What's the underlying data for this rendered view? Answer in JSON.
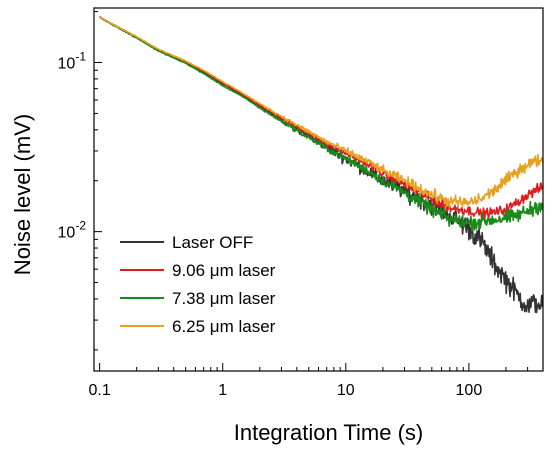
{
  "chart_data": {
    "type": "line",
    "xlabel": "Integration Time (s)",
    "ylabel": "Noise level (mV)",
    "x_scale": "log",
    "y_scale": "log",
    "xlim": [
      0.09,
      400
    ],
    "ylim": [
      0.0015,
      0.21
    ],
    "x_ticks": [
      {
        "value": 0.1,
        "label": "0.1"
      },
      {
        "value": 1,
        "label": "1"
      },
      {
        "value": 10,
        "label": "10"
      },
      {
        "value": 100,
        "label": "100"
      }
    ],
    "y_ticks": [
      {
        "value": 0.1,
        "base": "10",
        "exp": "-1"
      },
      {
        "value": 0.01,
        "base": "10",
        "exp": "-2"
      }
    ],
    "grid": false,
    "legend_position": "bottom-left",
    "series": [
      {
        "name": "Laser OFF",
        "color": "#333333",
        "points": [
          [
            0.1,
            0.185
          ],
          [
            0.2,
            0.14
          ],
          [
            0.3,
            0.118
          ],
          [
            0.5,
            0.1
          ],
          [
            0.7,
            0.088
          ],
          [
            1,
            0.075
          ],
          [
            1.5,
            0.063
          ],
          [
            2,
            0.055
          ],
          [
            3,
            0.046
          ],
          [
            5,
            0.037
          ],
          [
            7,
            0.032
          ],
          [
            10,
            0.027
          ],
          [
            15,
            0.023
          ],
          [
            20,
            0.02
          ],
          [
            30,
            0.0175
          ],
          [
            50,
            0.0145
          ],
          [
            70,
            0.0125
          ],
          [
            100,
            0.0105
          ],
          [
            130,
            0.0085
          ],
          [
            160,
            0.0065
          ],
          [
            200,
            0.0052
          ],
          [
            250,
            0.0042
          ],
          [
            300,
            0.0036
          ],
          [
            350,
            0.0038
          ],
          [
            400,
            0.0037
          ]
        ],
        "jitter": 0.09
      },
      {
        "name": "9.06 μm laser",
        "color": "#e41a1c",
        "points": [
          [
            0.1,
            0.185
          ],
          [
            0.2,
            0.141
          ],
          [
            0.3,
            0.119
          ],
          [
            0.5,
            0.101
          ],
          [
            0.7,
            0.089
          ],
          [
            1,
            0.076
          ],
          [
            1.5,
            0.064
          ],
          [
            2,
            0.056
          ],
          [
            3,
            0.047
          ],
          [
            5,
            0.038
          ],
          [
            7,
            0.033
          ],
          [
            10,
            0.029
          ],
          [
            15,
            0.025
          ],
          [
            20,
            0.022
          ],
          [
            30,
            0.019
          ],
          [
            50,
            0.0155
          ],
          [
            70,
            0.0138
          ],
          [
            100,
            0.0133
          ],
          [
            130,
            0.0128
          ],
          [
            160,
            0.013
          ],
          [
            200,
            0.0135
          ],
          [
            250,
            0.015
          ],
          [
            300,
            0.0165
          ],
          [
            350,
            0.0175
          ],
          [
            400,
            0.0185
          ]
        ],
        "jitter": 0.04
      },
      {
        "name": "7.38 μm laser",
        "color": "#1a8a1a",
        "points": [
          [
            0.1,
            0.185
          ],
          [
            0.2,
            0.14
          ],
          [
            0.3,
            0.117
          ],
          [
            0.5,
            0.099
          ],
          [
            0.7,
            0.086
          ],
          [
            1,
            0.073
          ],
          [
            1.5,
            0.062
          ],
          [
            2,
            0.054
          ],
          [
            3,
            0.045
          ],
          [
            5,
            0.036
          ],
          [
            7,
            0.031
          ],
          [
            10,
            0.027
          ],
          [
            15,
            0.023
          ],
          [
            20,
            0.02
          ],
          [
            30,
            0.017
          ],
          [
            50,
            0.0135
          ],
          [
            70,
            0.0118
          ],
          [
            100,
            0.0113
          ],
          [
            130,
            0.0115
          ],
          [
            160,
            0.0118
          ],
          [
            200,
            0.012
          ],
          [
            250,
            0.0125
          ],
          [
            300,
            0.0133
          ],
          [
            350,
            0.014
          ],
          [
            400,
            0.0145
          ]
        ],
        "jitter": 0.06
      },
      {
        "name": "6.25 μm laser",
        "color": "#e8a020",
        "points": [
          [
            0.1,
            0.185
          ],
          [
            0.2,
            0.142
          ],
          [
            0.3,
            0.12
          ],
          [
            0.5,
            0.102
          ],
          [
            0.7,
            0.09
          ],
          [
            1,
            0.077
          ],
          [
            1.5,
            0.065
          ],
          [
            2,
            0.057
          ],
          [
            3,
            0.048
          ],
          [
            5,
            0.039
          ],
          [
            7,
            0.034
          ],
          [
            10,
            0.03
          ],
          [
            15,
            0.026
          ],
          [
            20,
            0.023
          ],
          [
            30,
            0.02
          ],
          [
            50,
            0.0165
          ],
          [
            70,
            0.015
          ],
          [
            100,
            0.0148
          ],
          [
            130,
            0.0158
          ],
          [
            160,
            0.0175
          ],
          [
            200,
            0.02
          ],
          [
            250,
            0.023
          ],
          [
            300,
            0.025
          ],
          [
            350,
            0.026
          ],
          [
            400,
            0.027
          ]
        ],
        "jitter": 0.05
      }
    ]
  }
}
